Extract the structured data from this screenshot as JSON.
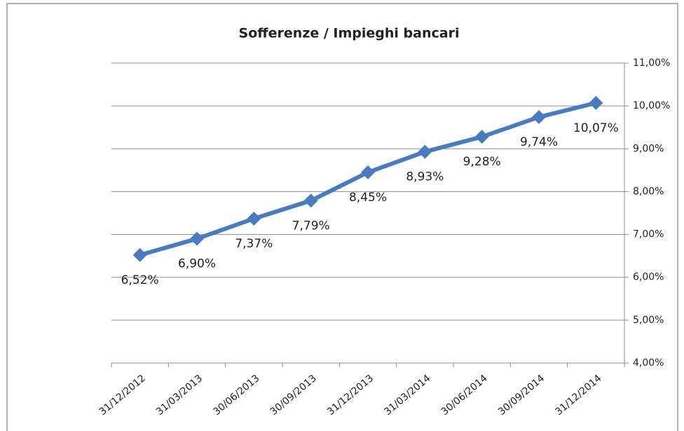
{
  "chart_data": {
    "type": "line",
    "title": "Sofferenze / Impieghi bancari",
    "categories": [
      "31/12/2012",
      "31/03/2013",
      "30/06/2013",
      "30/09/2013",
      "31/12/2013",
      "31/03/2014",
      "30/06/2014",
      "30/09/2014",
      "31/12/2014"
    ],
    "values": [
      6.52,
      6.9,
      7.37,
      7.79,
      8.45,
      8.93,
      9.28,
      9.74,
      10.07
    ],
    "value_labels": [
      "6,52%",
      "6,90%",
      "7,37%",
      "7,79%",
      "8,45%",
      "8,93%",
      "9,28%",
      "9,74%",
      "10,07%"
    ],
    "color": "#4a7bbf",
    "ylim": [
      4,
      11
    ],
    "yticks": [
      {
        "value": 4,
        "label": "4,00%"
      },
      {
        "value": 5,
        "label": "5,00%"
      },
      {
        "value": 6,
        "label": "6,00%"
      },
      {
        "value": 7,
        "label": "7,00%"
      },
      {
        "value": 8,
        "label": "8,00%"
      },
      {
        "value": 9,
        "label": "9,00%"
      },
      {
        "value": 10,
        "label": "10,00%"
      },
      {
        "value": 11,
        "label": "11,00%"
      }
    ],
    "grid": true
  }
}
